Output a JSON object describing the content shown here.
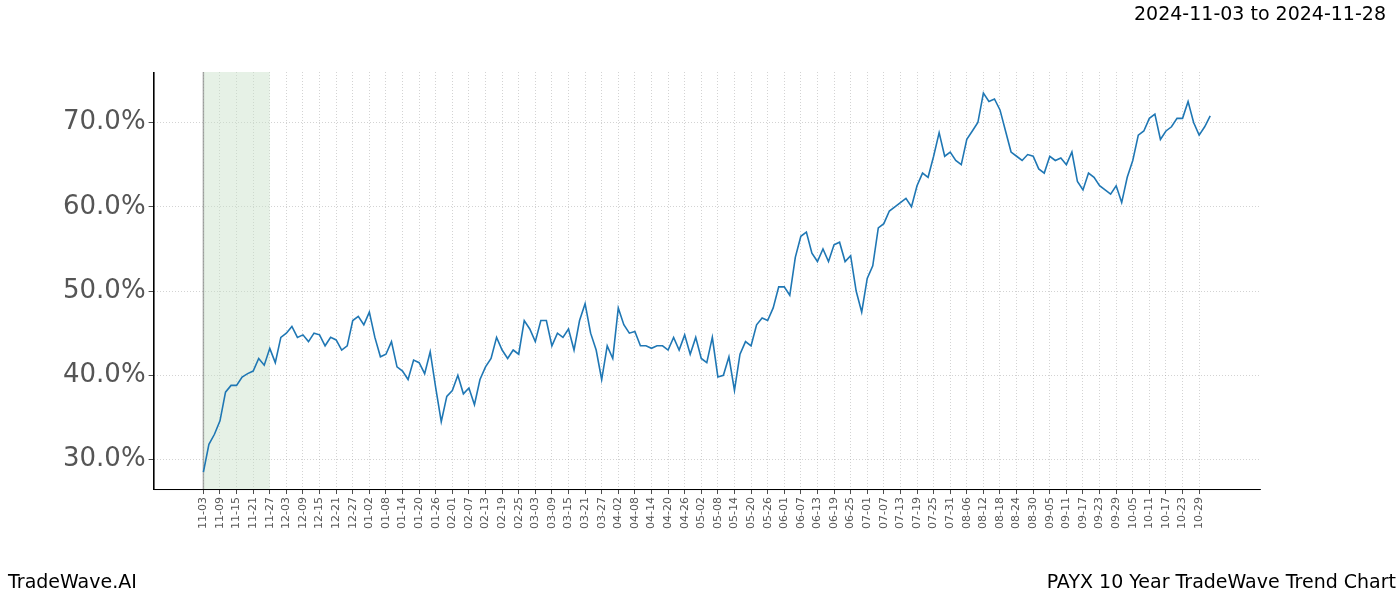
{
  "chart_data": {
    "type": "line",
    "title": "2024-11-03 to 2024-11-28",
    "footer_left": "TradeWave.AI",
    "footer_right": "PAYX 10 Year TradeWave Trend Chart",
    "color": "#1f77b4",
    "grid": true,
    "shaded_span": [
      "11-03",
      "11-27"
    ],
    "ylim": [
      26.5,
      76
    ],
    "yticks": [
      {
        "value": 30,
        "label": "30.0%"
      },
      {
        "value": 40,
        "label": "40.0%"
      },
      {
        "value": 50,
        "label": "50.0%"
      },
      {
        "value": 60,
        "label": "60.0%"
      },
      {
        "value": 70,
        "label": "70.0%"
      }
    ],
    "categories": [
      "11-03",
      null,
      null,
      "11-09",
      null,
      null,
      "11-15",
      null,
      null,
      "11-21",
      null,
      null,
      "11-27",
      null,
      null,
      "12-03",
      null,
      null,
      "12-09",
      null,
      null,
      "12-15",
      null,
      null,
      "12-21",
      null,
      null,
      "12-27",
      null,
      null,
      "01-02",
      null,
      null,
      "01-08",
      null,
      null,
      "01-14",
      null,
      null,
      "01-20",
      null,
      null,
      "01-26",
      null,
      null,
      "02-01",
      null,
      null,
      "02-07",
      null,
      null,
      "02-13",
      null,
      null,
      "02-19",
      null,
      null,
      "02-25",
      null,
      null,
      "03-03",
      null,
      null,
      "03-09",
      null,
      null,
      "03-15",
      null,
      null,
      "03-21",
      null,
      null,
      "03-27",
      null,
      null,
      "04-02",
      null,
      null,
      "04-08",
      null,
      null,
      "04-14",
      null,
      null,
      "04-20",
      null,
      null,
      "04-26",
      null,
      null,
      "05-02",
      null,
      null,
      "05-08",
      null,
      null,
      "05-14",
      null,
      null,
      "05-20",
      null,
      null,
      "05-26",
      null,
      null,
      "06-01",
      null,
      null,
      "06-07",
      null,
      null,
      "06-13",
      null,
      null,
      "06-19",
      null,
      null,
      "06-25",
      null,
      null,
      "07-01",
      null,
      null,
      "07-07",
      null,
      null,
      "07-13",
      null,
      null,
      "07-19",
      null,
      null,
      "07-25",
      null,
      null,
      "07-31",
      null,
      null,
      "08-06",
      null,
      null,
      "08-12",
      null,
      null,
      "08-18",
      null,
      null,
      "08-24",
      null,
      null,
      "08-30",
      null,
      null,
      "09-05",
      null,
      null,
      "09-11",
      null,
      null,
      "09-17",
      null,
      null,
      "09-23",
      null,
      null,
      "09-29",
      null,
      null,
      "10-05",
      null,
      null,
      "10-11",
      null,
      null,
      "10-17",
      null,
      null,
      "10-23",
      null,
      null,
      "10-29",
      null,
      null
    ],
    "values": [
      28.5,
      31.8,
      33.0,
      34.6,
      38.0,
      38.8,
      38.8,
      39.8,
      40.2,
      40.5,
      42.0,
      41.2,
      43.2,
      41.5,
      44.5,
      45.0,
      45.8,
      44.5,
      44.8,
      44.0,
      45.0,
      44.8,
      43.5,
      44.5,
      44.2,
      43.0,
      43.5,
      46.5,
      47.0,
      46.0,
      47.5,
      44.5,
      42.2,
      42.5,
      44.0,
      41.0,
      40.5,
      39.5,
      41.8,
      41.5,
      40.2,
      42.8,
      38.5,
      34.5,
      37.5,
      38.2,
      40.0,
      37.8,
      38.5,
      36.5,
      39.5,
      41.0,
      42.0,
      44.5,
      43.0,
      42.0,
      43.0,
      42.5,
      46.5,
      45.5,
      44.0,
      46.5,
      46.5,
      43.5,
      45.0,
      44.5,
      45.5,
      43.0,
      46.5,
      48.5,
      45.0,
      43.0,
      39.5,
      43.5,
      42.0,
      48.0,
      46.0,
      45.0,
      45.2,
      43.5,
      43.5,
      43.2,
      43.5,
      43.5,
      43.0,
      44.5,
      43.0,
      44.8,
      42.5,
      44.5,
      42.0,
      41.5,
      44.5,
      39.8,
      40.0,
      42.2,
      38.2,
      42.5,
      44.0,
      43.5,
      46.0,
      46.8,
      46.5,
      48.0,
      50.5,
      50.5,
      49.5,
      54.0,
      56.5,
      57.0,
      54.5,
      53.5,
      55.0,
      53.5,
      55.5,
      55.8,
      53.5,
      54.2,
      50.0,
      47.5,
      51.5,
      53.0,
      57.5,
      58.0,
      59.5,
      60.0,
      60.5,
      61.0,
      60.0,
      62.5,
      64.0,
      63.5,
      66.0,
      68.8,
      66.0,
      66.5,
      65.5,
      65.0,
      68.0,
      69.0,
      70.0,
      73.5,
      72.5,
      72.8,
      71.5,
      69.0,
      66.5,
      66.0,
      65.5,
      66.2,
      66.0,
      64.5,
      64.0,
      66.0,
      65.5,
      65.8,
      65.0,
      66.5,
      63.0,
      62.0,
      64.0,
      63.5,
      62.5,
      62.0,
      61.5,
      62.5,
      60.5,
      63.5,
      65.5,
      68.5,
      69.0,
      70.5,
      71.0,
      68.0,
      69.0,
      69.5,
      70.5,
      70.5,
      72.5,
      70.0,
      68.5,
      69.5,
      70.8
    ]
  }
}
